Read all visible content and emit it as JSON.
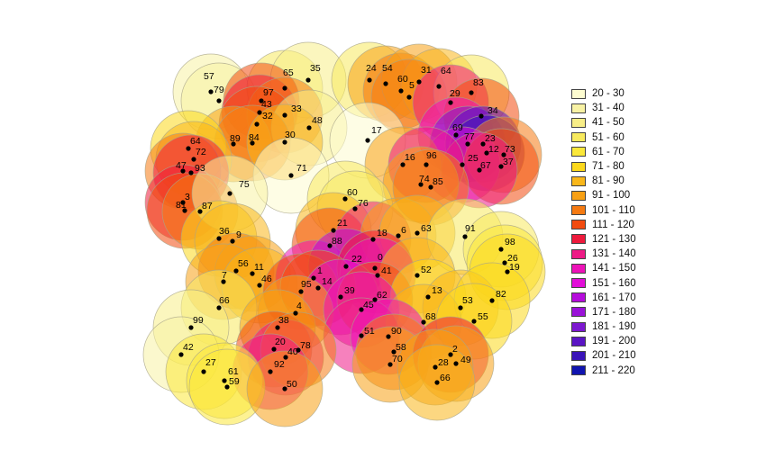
{
  "legend": {
    "items": [
      {
        "label": "20 - 30",
        "color": "#fdfcd0"
      },
      {
        "label": "31 - 40",
        "color": "#f8f2a4"
      },
      {
        "label": "41 - 50",
        "color": "#f8ee88"
      },
      {
        "label": "51 - 60",
        "color": "#f8ea5e"
      },
      {
        "label": "61 - 70",
        "color": "#fbe83a"
      },
      {
        "label": "71 - 80",
        "color": "#fbd81c"
      },
      {
        "label": "81 - 90",
        "color": "#f9b71a"
      },
      {
        "label": "91 - 100",
        "color": "#f8a014"
      },
      {
        "label": "101 - 110",
        "color": "#f57a12"
      },
      {
        "label": "111 - 120",
        "color": "#f24b0f"
      },
      {
        "label": "121 - 130",
        "color": "#ee1a3c"
      },
      {
        "label": "131 - 140",
        "color": "#ee1a86"
      },
      {
        "label": "141 - 150",
        "color": "#ed12b8"
      },
      {
        "label": "151 - 160",
        "color": "#e20ed8"
      },
      {
        "label": "161 - 170",
        "color": "#b60cdc"
      },
      {
        "label": "171 - 180",
        "color": "#9a12d8"
      },
      {
        "label": "181 - 190",
        "color": "#7d18d0"
      },
      {
        "label": "191 - 200",
        "color": "#5a14c4"
      },
      {
        "label": "201 - 210",
        "color": "#3a14b8"
      },
      {
        "label": "211 - 220",
        "color": "#1014b0"
      }
    ]
  },
  "points": [
    {
      "label": "57",
      "value": 35
    },
    {
      "label": "79",
      "value": 40
    },
    {
      "label": "65",
      "value": 60
    },
    {
      "label": "35",
      "value": 45
    },
    {
      "label": "24",
      "value": 60
    },
    {
      "label": "54",
      "value": 95
    },
    {
      "label": "60",
      "value": 105
    },
    {
      "label": "31",
      "value": 95
    },
    {
      "label": "64",
      "value": 85
    },
    {
      "label": "5",
      "value": 110
    },
    {
      "label": "83",
      "value": 60
    },
    {
      "label": "97",
      "value": 115
    },
    {
      "label": "43",
      "value": 130
    },
    {
      "label": "33",
      "value": 110
    },
    {
      "label": "32",
      "value": 120
    },
    {
      "label": "48",
      "value": 50
    },
    {
      "label": "29",
      "value": 140
    },
    {
      "label": "34",
      "value": 120
    },
    {
      "label": "69",
      "value": 150
    },
    {
      "label": "77",
      "value": 190
    },
    {
      "label": "23",
      "value": 200
    },
    {
      "label": "12",
      "value": 210
    },
    {
      "label": "73",
      "value": 110
    },
    {
      "label": "25",
      "value": 160
    },
    {
      "label": "37",
      "value": 120
    },
    {
      "label": "67",
      "value": 140
    },
    {
      "label": "17",
      "value": 25
    },
    {
      "label": "89",
      "value": 95
    },
    {
      "label": "84",
      "value": 110
    },
    {
      "label": "30",
      "value": 85
    },
    {
      "label": "64",
      "value": 80
    },
    {
      "label": "72",
      "value": 85
    },
    {
      "label": "47",
      "value": 110
    },
    {
      "label": "93",
      "value": 130
    },
    {
      "label": "71",
      "value": 30
    },
    {
      "label": "16",
      "value": 95
    },
    {
      "label": "96",
      "value": 140
    },
    {
      "label": "74",
      "value": 100
    },
    {
      "label": "85",
      "value": 110
    },
    {
      "label": "3",
      "value": 130
    },
    {
      "label": "81",
      "value": 120
    },
    {
      "label": "87",
      "value": 110
    },
    {
      "label": "75",
      "value": 40
    },
    {
      "label": "60",
      "value": 55
    },
    {
      "label": "76",
      "value": 60
    },
    {
      "label": "21",
      "value": 90
    },
    {
      "label": "88",
      "value": 120
    },
    {
      "label": "18",
      "value": 140
    },
    {
      "label": "6",
      "value": 95
    },
    {
      "label": "63",
      "value": 90
    },
    {
      "label": "91",
      "value": 55
    },
    {
      "label": "98",
      "value": 60
    },
    {
      "label": "26",
      "value": 70
    },
    {
      "label": "19",
      "value": 75
    },
    {
      "label": "36",
      "value": 80
    },
    {
      "label": "9",
      "value": 85
    },
    {
      "label": "56",
      "value": 110
    },
    {
      "label": "11",
      "value": 100
    },
    {
      "label": "7",
      "value": 95
    },
    {
      "label": "46",
      "value": 90
    },
    {
      "label": "1",
      "value": 150
    },
    {
      "label": "22",
      "value": 170
    },
    {
      "label": "0",
      "value": 130
    },
    {
      "label": "41",
      "value": 150
    },
    {
      "label": "52",
      "value": 90
    },
    {
      "label": "95",
      "value": 115
    },
    {
      "label": "14",
      "value": 120
    },
    {
      "label": "39",
      "value": 160
    },
    {
      "label": "62",
      "value": 120
    },
    {
      "label": "13",
      "value": 80
    },
    {
      "label": "53",
      "value": 85
    },
    {
      "label": "82",
      "value": 80
    },
    {
      "label": "66",
      "value": 60
    },
    {
      "label": "4",
      "value": 100
    },
    {
      "label": "45",
      "value": 150
    },
    {
      "label": "99",
      "value": 45
    },
    {
      "label": "38",
      "value": 95
    },
    {
      "label": "68",
      "value": 90
    },
    {
      "label": "55",
      "value": 75
    },
    {
      "label": "51",
      "value": 140
    },
    {
      "label": "90",
      "value": 150
    },
    {
      "label": "58",
      "value": 110
    },
    {
      "label": "42",
      "value": 40
    },
    {
      "label": "20",
      "value": 120
    },
    {
      "label": "40",
      "value": 140
    },
    {
      "label": "78",
      "value": 110
    },
    {
      "label": "27",
      "value": 70
    },
    {
      "label": "92",
      "value": 140
    },
    {
      "label": "70",
      "value": 100
    },
    {
      "label": "2",
      "value": 130
    },
    {
      "label": "49",
      "value": 100
    },
    {
      "label": "28",
      "value": 95
    },
    {
      "label": "61",
      "value": 70
    },
    {
      "label": "59",
      "value": 70
    },
    {
      "label": "50",
      "value": 100
    },
    {
      "label": "66",
      "value": 90
    }
  ]
}
